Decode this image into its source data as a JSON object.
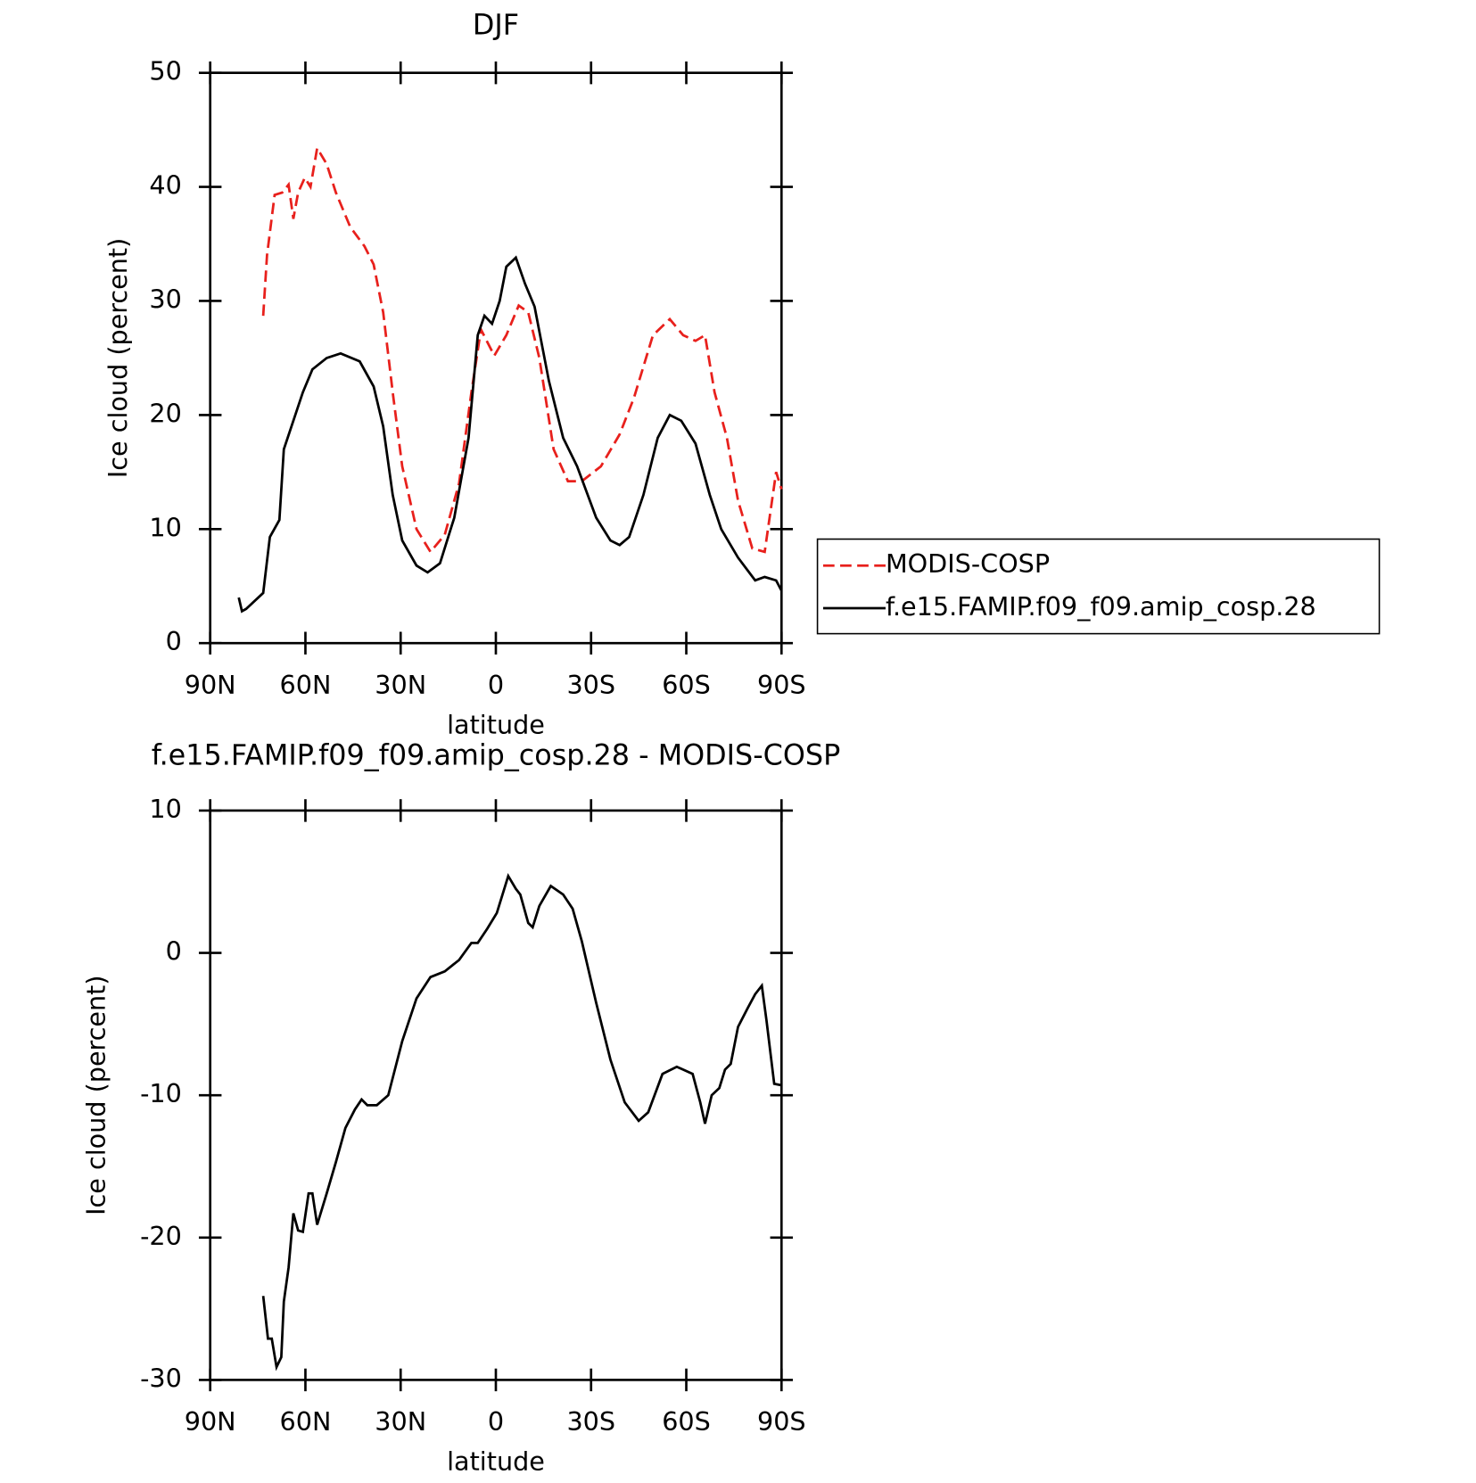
{
  "chart_data": [
    {
      "type": "line",
      "title": "DJF",
      "x_label": "latitude",
      "y_label": "Ice cloud (percent)",
      "xlim": [
        90,
        -90
      ],
      "ylim": [
        0,
        50
      ],
      "xticks": [
        {
          "value": 90,
          "label": "90N"
        },
        {
          "value": 60,
          "label": "60N"
        },
        {
          "value": 30,
          "label": "30N"
        },
        0,
        {
          "value": -30,
          "label": "30S"
        },
        {
          "value": -60,
          "label": "60S"
        },
        {
          "value": -90,
          "label": "90S"
        }
      ],
      "yticks": [
        0,
        10,
        20,
        30,
        40,
        50
      ],
      "legend": "right",
      "series": [
        {
          "name": "MODIS-COSP",
          "color": "#e8201c",
          "dashed": true,
          "x": [
            73.3,
            72.1,
            69.7,
            67.3,
            65.3,
            63.8,
            62.3,
            60.2,
            58.4,
            56.3,
            53.3,
            50.4,
            45.9,
            41.4,
            38.5,
            35.5,
            32.5,
            29.5,
            25,
            20.6,
            16.1,
            11.6,
            7.7,
            4.7,
            0.5,
            -3.3,
            -7.2,
            -10.2,
            -13.7,
            -18.2,
            -22.7,
            -27.1,
            -33.1,
            -39,
            -43.5,
            -49.5,
            -54.8,
            -59,
            -62.9,
            -65.9,
            -68.9,
            -72.8,
            -76.3,
            -80.8,
            -84.7,
            -88.3,
            -90
          ],
          "values": [
            28.7,
            34,
            39.3,
            39.5,
            40.2,
            37.2,
            39.5,
            40.8,
            40,
            43.4,
            42,
            39.5,
            36.5,
            34.8,
            33.2,
            29,
            22,
            15.5,
            10,
            8,
            9.5,
            14,
            22,
            27.5,
            25.2,
            27,
            29.6,
            29,
            25,
            17,
            14.2,
            14.2,
            15.5,
            18.3,
            21.5,
            27,
            28.4,
            27,
            26.5,
            27,
            22,
            18,
            12.5,
            8.3,
            8,
            15,
            13.5
          ]
        },
        {
          "name": "f.e15.FAMIP.f09_f09.amip_cosp.28",
          "color": "#000000",
          "dashed": false,
          "x": [
            81,
            80,
            78.7,
            73.3,
            71.2,
            68.2,
            66.8,
            63.8,
            60.8,
            57.8,
            53.3,
            48.9,
            42.9,
            38.5,
            35.5,
            32.5,
            29.5,
            25,
            21.5,
            17.6,
            13.1,
            8.6,
            5.7,
            3.6,
            1.2,
            -1.2,
            -3.3,
            -6.3,
            -9.2,
            -12.2,
            -16.7,
            -21.2,
            -25.6,
            -31.6,
            -36.1,
            -39,
            -42,
            -46.5,
            -51,
            -54.8,
            -58.4,
            -62.9,
            -67.4,
            -71,
            -76.3,
            -81.7,
            -84.7,
            -88.3,
            -90
          ],
          "values": [
            4,
            2.8,
            3,
            4.4,
            9.3,
            10.8,
            17,
            19.5,
            22,
            24,
            25,
            25.4,
            24.7,
            22.5,
            19,
            13,
            9,
            6.8,
            6.2,
            7,
            11,
            18,
            27,
            28.7,
            28,
            30,
            33,
            33.8,
            31.5,
            29.5,
            23,
            18,
            15.5,
            11,
            9,
            8.6,
            9.3,
            13,
            18,
            20,
            19.5,
            17.5,
            13,
            10,
            7.5,
            5.5,
            5.8,
            5.5,
            4.6
          ]
        }
      ]
    },
    {
      "type": "line",
      "title": "f.e15.FAMIP.f09_f09.amip_cosp.28 - MODIS-COSP",
      "x_label": "latitude",
      "y_label": "Ice cloud (percent)",
      "xlim": [
        90,
        -90
      ],
      "ylim": [
        -30,
        10
      ],
      "xticks": [
        {
          "value": 90,
          "label": "90N"
        },
        {
          "value": 60,
          "label": "60N"
        },
        {
          "value": 30,
          "label": "30N"
        },
        0,
        {
          "value": -30,
          "label": "30S"
        },
        {
          "value": -60,
          "label": "60S"
        },
        {
          "value": -90,
          "label": "90S"
        }
      ],
      "yticks": [
        -30,
        -20,
        -10,
        0,
        10
      ],
      "series": [
        {
          "color": "#000000",
          "dashed": false,
          "x": [
            73.3,
            71.8,
            70.6,
            69.1,
            67.6,
            66.8,
            65.3,
            63.8,
            62.3,
            60.8,
            59,
            57.8,
            56.3,
            53.3,
            50.4,
            47.4,
            44.4,
            42.3,
            40.5,
            37.5,
            33.9,
            29.5,
            25,
            20.6,
            16.1,
            11.6,
            7.7,
            5.7,
            2.7,
            -0.3,
            -3.9,
            -6.3,
            -7.7,
            -10.2,
            -11.6,
            -13.7,
            -17.3,
            -21.2,
            -24.2,
            -27.1,
            -31.6,
            -36.1,
            -40.6,
            -45,
            -48,
            -52.5,
            -57,
            -62,
            -64.4,
            -65.9,
            -68,
            -70.4,
            -72.2,
            -74,
            -76.3,
            -79.3,
            -81.7,
            -83.8,
            -85.3,
            -87.7,
            -90
          ],
          "values": [
            -24.1,
            -27.1,
            -27.1,
            -29.1,
            -28.4,
            -24.5,
            -22.1,
            -18.3,
            -19.5,
            -19.6,
            -16.9,
            -16.9,
            -19.1,
            -16.9,
            -14.7,
            -12.3,
            -11,
            -10.3,
            -10.7,
            -10.7,
            -10,
            -6.2,
            -3.2,
            -1.7,
            -1.3,
            -0.5,
            0.7,
            0.7,
            1.7,
            2.8,
            5.4,
            4.5,
            4.1,
            2.1,
            1.8,
            3.3,
            4.7,
            4.1,
            3.1,
            0.8,
            -3.5,
            -7.5,
            -10.5,
            -11.8,
            -11.2,
            -8.5,
            -8,
            -8.5,
            -10.5,
            -12,
            -10,
            -9.5,
            -8.2,
            -7.8,
            -5.2,
            -3.9,
            -2.9,
            -2.3,
            -4.8,
            -9.2,
            -9.3
          ]
        }
      ]
    }
  ]
}
